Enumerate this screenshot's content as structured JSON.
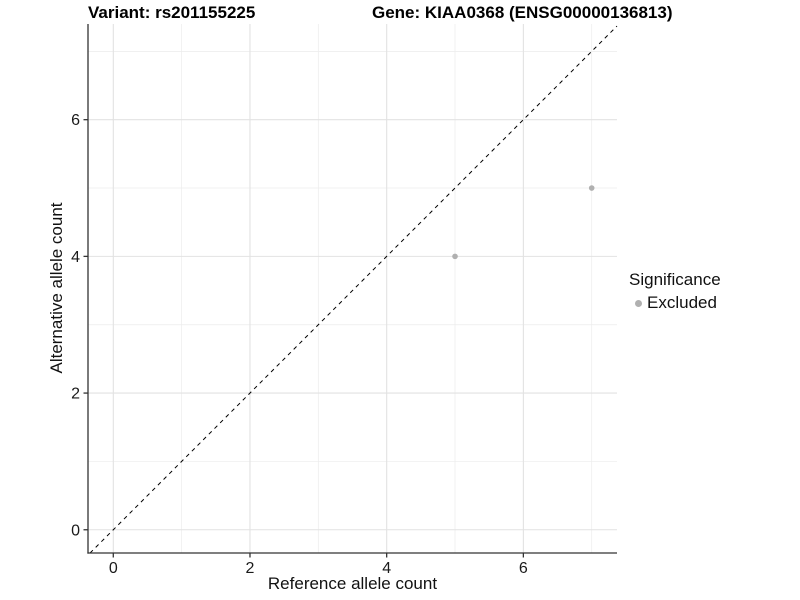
{
  "chart_data": {
    "type": "scatter",
    "title_left": "Variant: rs201155225",
    "title_right": "Gene: KIAA0368 (ENSG00000136813)",
    "xlabel": "Reference allele count",
    "ylabel": "Alternative allele count",
    "xlim": [
      -0.37,
      7.37
    ],
    "ylim": [
      -0.34,
      7.4
    ],
    "x_major_ticks": [
      0,
      2,
      4,
      6
    ],
    "y_major_ticks": [
      0,
      2,
      4,
      6
    ],
    "x_minor_gridlines": [
      1,
      3,
      5,
      7
    ],
    "y_minor_gridlines": [
      1,
      3,
      5,
      7
    ],
    "grid": true,
    "legend_position": "right",
    "series": [
      {
        "name": "Excluded",
        "color": "#b0b0b0",
        "points": [
          {
            "x": 5,
            "y": 4
          },
          {
            "x": 7,
            "y": 5
          }
        ]
      }
    ],
    "reference_line": {
      "type": "identity",
      "equation": "y = x",
      "style": "dashed",
      "color": "#000000"
    },
    "legend": {
      "title": "Significance",
      "entries": [
        {
          "label": "Excluded",
          "color": "#b0b0b0"
        }
      ]
    },
    "style": {
      "axis_line_color": "#333333",
      "tick_color": "#333333",
      "tick_label_color": "#1a1a1a",
      "grid_major_color": "#e2e2e2",
      "grid_minor_color": "#ececec",
      "background": "#ffffff"
    }
  }
}
